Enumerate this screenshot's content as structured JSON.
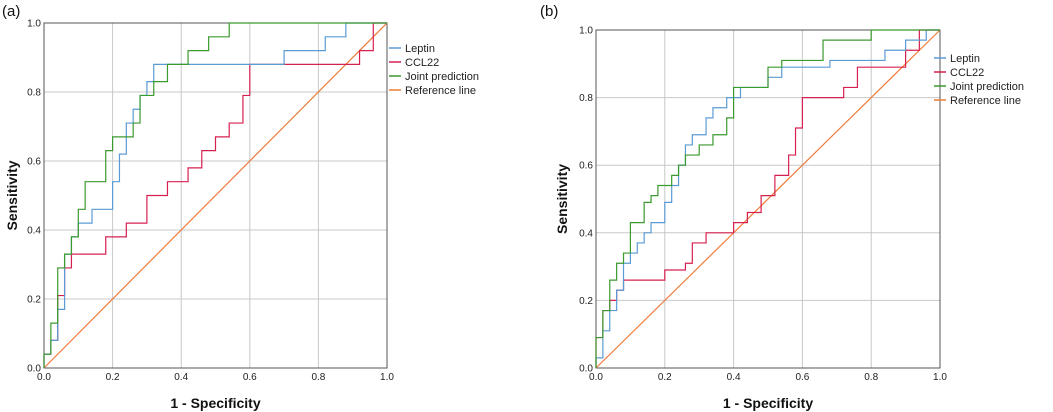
{
  "series_meta": [
    {
      "key": "leptin",
      "color": "#5b9bd5"
    },
    {
      "key": "ccl22",
      "color": "#d6204f"
    },
    {
      "key": "joint",
      "color": "#3b9a2e"
    },
    {
      "key": "reference",
      "color": "#f07c3b"
    }
  ],
  "chart_data": [
    {
      "type": "line",
      "panel_label": "(a)",
      "xlabel": "1 - Specificity",
      "ylabel": "Sensitivity",
      "xlim": [
        0,
        1
      ],
      "ylim": [
        0,
        1
      ],
      "x_ticks": [
        "0.0",
        "0.2",
        "0.4",
        "0.6",
        "0.8",
        "1.0"
      ],
      "y_ticks": [
        "0.0",
        "0.2",
        "0.4",
        "0.6",
        "0.8",
        "1.0"
      ],
      "grid": true,
      "legend_position": "right-top",
      "series": [
        {
          "name": "Leptin",
          "x": [
            0,
            0,
            0.02,
            0.02,
            0.04,
            0.04,
            0.06,
            0.06,
            0.08,
            0.08,
            0.1,
            0.1,
            0.14,
            0.14,
            0.2,
            0.2,
            0.22,
            0.22,
            0.24,
            0.24,
            0.26,
            0.26,
            0.28,
            0.28,
            0.3,
            0.3,
            0.32,
            0.32,
            0.4,
            0.4,
            0.7,
            0.7,
            0.82,
            0.82,
            0.88,
            0.88,
            1.0
          ],
          "y": [
            0,
            0.04,
            0.04,
            0.08,
            0.08,
            0.17,
            0.17,
            0.33,
            0.33,
            0.38,
            0.38,
            0.42,
            0.42,
            0.46,
            0.46,
            0.54,
            0.54,
            0.62,
            0.62,
            0.71,
            0.71,
            0.75,
            0.75,
            0.79,
            0.79,
            0.83,
            0.83,
            0.88,
            0.88,
            0.88,
            0.88,
            0.92,
            0.92,
            0.96,
            0.96,
            1.0,
            1.0
          ]
        },
        {
          "name": "CCL22",
          "x": [
            0,
            0,
            0.02,
            0.02,
            0.04,
            0.04,
            0.06,
            0.06,
            0.08,
            0.08,
            0.18,
            0.18,
            0.24,
            0.24,
            0.3,
            0.3,
            0.36,
            0.36,
            0.42,
            0.42,
            0.46,
            0.46,
            0.5,
            0.5,
            0.54,
            0.54,
            0.58,
            0.58,
            0.6,
            0.6,
            0.86,
            0.86,
            0.92,
            0.92,
            0.96,
            0.96,
            1.0
          ],
          "y": [
            0,
            0.04,
            0.04,
            0.08,
            0.08,
            0.21,
            0.21,
            0.29,
            0.29,
            0.33,
            0.33,
            0.38,
            0.38,
            0.42,
            0.42,
            0.5,
            0.5,
            0.54,
            0.54,
            0.58,
            0.58,
            0.63,
            0.63,
            0.67,
            0.67,
            0.71,
            0.71,
            0.79,
            0.79,
            0.88,
            0.88,
            0.88,
            0.88,
            0.92,
            0.92,
            1.0,
            1.0
          ]
        },
        {
          "name": "Joint prediction",
          "x": [
            0,
            0,
            0.02,
            0.02,
            0.04,
            0.04,
            0.06,
            0.06,
            0.08,
            0.08,
            0.1,
            0.1,
            0.12,
            0.12,
            0.18,
            0.18,
            0.2,
            0.2,
            0.26,
            0.26,
            0.28,
            0.28,
            0.32,
            0.32,
            0.36,
            0.36,
            0.42,
            0.42,
            0.48,
            0.48,
            0.54,
            0.54,
            1.0
          ],
          "y": [
            0,
            0.04,
            0.04,
            0.13,
            0.13,
            0.29,
            0.29,
            0.33,
            0.33,
            0.38,
            0.38,
            0.46,
            0.46,
            0.54,
            0.54,
            0.63,
            0.63,
            0.67,
            0.67,
            0.71,
            0.71,
            0.79,
            0.79,
            0.83,
            0.83,
            0.88,
            0.88,
            0.92,
            0.92,
            0.96,
            0.96,
            1.0,
            1.0
          ]
        },
        {
          "name": "Reference line",
          "x": [
            0,
            1
          ],
          "y": [
            0,
            1
          ]
        }
      ]
    },
    {
      "type": "line",
      "panel_label": "(b)",
      "xlabel": "1 - Specificity",
      "ylabel": "Sensitivity",
      "xlim": [
        0,
        1
      ],
      "ylim": [
        0,
        1
      ],
      "x_ticks": [
        "0.0",
        "0.2",
        "0.4",
        "0.6",
        "0.8",
        "1.0"
      ],
      "y_ticks": [
        "0.0",
        "0.2",
        "0.4",
        "0.6",
        "0.8",
        "1.0"
      ],
      "grid": true,
      "legend_position": "right-top",
      "series": [
        {
          "name": "Leptin",
          "x": [
            0,
            0,
            0.02,
            0.02,
            0.04,
            0.04,
            0.06,
            0.06,
            0.08,
            0.08,
            0.1,
            0.1,
            0.12,
            0.12,
            0.14,
            0.14,
            0.16,
            0.16,
            0.2,
            0.2,
            0.22,
            0.22,
            0.24,
            0.24,
            0.26,
            0.26,
            0.28,
            0.28,
            0.32,
            0.32,
            0.34,
            0.34,
            0.38,
            0.38,
            0.42,
            0.42,
            0.5,
            0.5,
            0.54,
            0.54,
            0.68,
            0.68,
            0.84,
            0.84,
            0.9,
            0.9,
            0.96,
            0.96,
            1.0
          ],
          "y": [
            0,
            0.03,
            0.03,
            0.11,
            0.11,
            0.17,
            0.17,
            0.23,
            0.23,
            0.31,
            0.31,
            0.34,
            0.34,
            0.37,
            0.37,
            0.4,
            0.4,
            0.43,
            0.43,
            0.49,
            0.49,
            0.54,
            0.54,
            0.6,
            0.6,
            0.66,
            0.66,
            0.69,
            0.69,
            0.74,
            0.74,
            0.77,
            0.77,
            0.8,
            0.8,
            0.83,
            0.83,
            0.86,
            0.86,
            0.89,
            0.89,
            0.91,
            0.91,
            0.94,
            0.94,
            0.97,
            0.97,
            1.0,
            1.0
          ]
        },
        {
          "name": "CCL22",
          "x": [
            0,
            0,
            0.02,
            0.02,
            0.04,
            0.04,
            0.06,
            0.06,
            0.08,
            0.08,
            0.2,
            0.2,
            0.26,
            0.26,
            0.28,
            0.28,
            0.32,
            0.32,
            0.4,
            0.4,
            0.44,
            0.44,
            0.48,
            0.48,
            0.52,
            0.52,
            0.56,
            0.56,
            0.58,
            0.58,
            0.6,
            0.6,
            0.72,
            0.72,
            0.76,
            0.76,
            0.9,
            0.9,
            0.94,
            0.94,
            1.0
          ],
          "y": [
            0,
            0.09,
            0.09,
            0.17,
            0.17,
            0.2,
            0.2,
            0.23,
            0.23,
            0.26,
            0.26,
            0.29,
            0.29,
            0.31,
            0.31,
            0.37,
            0.37,
            0.4,
            0.4,
            0.43,
            0.43,
            0.46,
            0.46,
            0.51,
            0.51,
            0.57,
            0.57,
            0.63,
            0.63,
            0.71,
            0.71,
            0.8,
            0.8,
            0.83,
            0.83,
            0.89,
            0.89,
            0.94,
            0.94,
            1.0,
            1.0
          ]
        },
        {
          "name": "Joint prediction",
          "x": [
            0,
            0,
            0.02,
            0.02,
            0.04,
            0.04,
            0.06,
            0.06,
            0.08,
            0.08,
            0.1,
            0.1,
            0.14,
            0.14,
            0.16,
            0.16,
            0.18,
            0.18,
            0.22,
            0.22,
            0.24,
            0.24,
            0.26,
            0.26,
            0.3,
            0.3,
            0.34,
            0.34,
            0.38,
            0.38,
            0.4,
            0.4,
            0.44,
            0.44,
            0.5,
            0.5,
            0.54,
            0.54,
            0.66,
            0.66,
            0.8,
            0.8,
            1.0
          ],
          "y": [
            0,
            0.09,
            0.09,
            0.17,
            0.17,
            0.26,
            0.26,
            0.31,
            0.31,
            0.34,
            0.34,
            0.43,
            0.43,
            0.49,
            0.49,
            0.51,
            0.51,
            0.54,
            0.54,
            0.57,
            0.57,
            0.6,
            0.6,
            0.63,
            0.63,
            0.66,
            0.66,
            0.69,
            0.69,
            0.74,
            0.74,
            0.83,
            0.83,
            0.83,
            0.83,
            0.89,
            0.89,
            0.91,
            0.91,
            0.97,
            0.97,
            1.0,
            1.0
          ]
        },
        {
          "name": "Reference line",
          "x": [
            0,
            1
          ],
          "y": [
            0,
            1
          ]
        }
      ]
    }
  ]
}
